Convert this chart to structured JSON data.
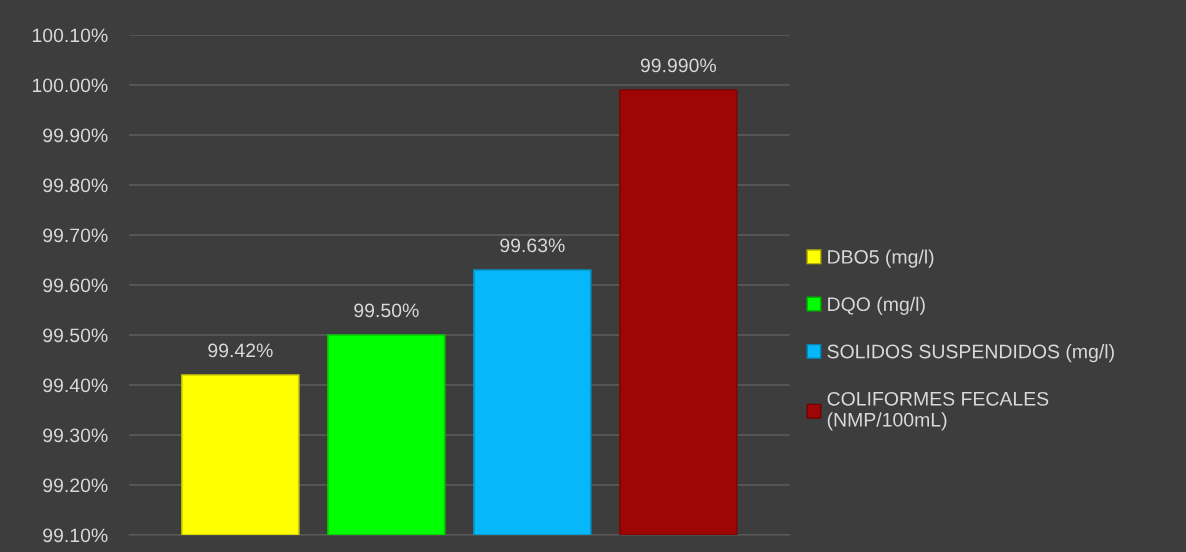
{
  "chart_data": {
    "type": "bar",
    "categories": [
      null
    ],
    "series": [
      {
        "name": "DBO5 (mg/l)",
        "color": "#ffff00",
        "values": [
          99.42
        ],
        "value_labels": [
          "99.42%"
        ]
      },
      {
        "name": "DQO (mg/l)",
        "color": "#00ff00",
        "values": [
          99.5
        ],
        "value_labels": [
          "99.50%"
        ]
      },
      {
        "name": "SOLIDOS SUSPENDIDOS (mg/l)",
        "color": "#06b8f9",
        "values": [
          99.63
        ],
        "value_labels": [
          "99.63%"
        ]
      },
      {
        "name": "COLIFORMES FECALES\n(NMP/100mL)",
        "color": "#9e0606",
        "values": [
          99.99
        ],
        "value_labels": [
          "99.990%"
        ]
      }
    ],
    "ylim": [
      99.1,
      100.1
    ],
    "yticks": [
      {
        "value": 99.1,
        "label": "99.10%"
      },
      {
        "value": 99.2,
        "label": "99.20%"
      },
      {
        "value": 99.3,
        "label": "99.30%"
      },
      {
        "value": 99.4,
        "label": "99.40%"
      },
      {
        "value": 99.5,
        "label": "99.50%"
      },
      {
        "value": 99.6,
        "label": "99.60%"
      },
      {
        "value": 99.7,
        "label": "99.70%"
      },
      {
        "value": 99.8,
        "label": "99.80%"
      },
      {
        "value": 99.9,
        "label": "99.90%"
      },
      {
        "value": 100.0,
        "label": "100.00%"
      },
      {
        "value": 100.1,
        "label": "100.10%"
      }
    ],
    "grid": "y",
    "legend": "right",
    "tick_labels": "y"
  }
}
